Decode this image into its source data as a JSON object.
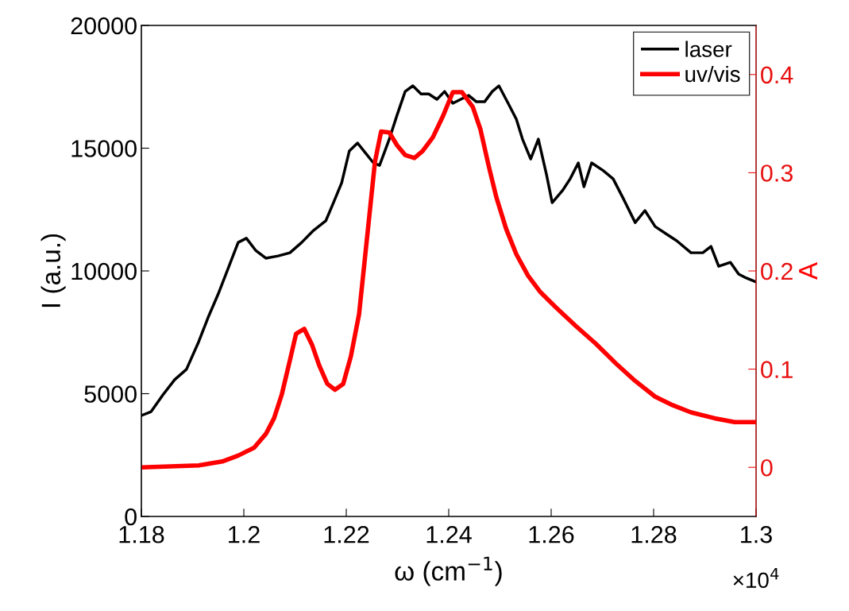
{
  "chart_data": {
    "type": "line",
    "xlabel": "ω (cm$^{−1}$)",
    "ylabel": "I (a.u.)",
    "y2label": "A",
    "annotations": [
      "×10$^{4}$"
    ],
    "xlim": [
      1.18,
      1.3
    ],
    "xticks": [
      1.18,
      1.2,
      1.22,
      1.24,
      1.26,
      1.28,
      1.3
    ],
    "ylim": [
      0,
      20000
    ],
    "yticks": [
      0,
      5000,
      10000,
      15000,
      20000
    ],
    "y2lim": [
      -0.05,
      0.45
    ],
    "y2ticks": [
      0,
      0.1,
      0.2,
      0.3,
      0.4
    ],
    "grid": false,
    "legend": "top right",
    "line_style": "solid",
    "marker": "none",
    "series": [
      {
        "name": "laser",
        "color": "#000000",
        "x": [
          1.18,
          1.1819,
          1.1842,
          1.1865,
          1.1888,
          1.1912,
          1.193,
          1.195,
          1.1974,
          1.1989,
          1.2005,
          1.2023,
          1.2043,
          1.2067,
          1.209,
          1.2113,
          1.2136,
          1.216,
          1.2175,
          1.2191,
          1.2206,
          1.2222,
          1.2237,
          1.2253,
          1.2265,
          1.2284,
          1.2299,
          1.2315,
          1.233,
          1.2346,
          1.2361,
          1.2377,
          1.2392,
          1.2408,
          1.2439,
          1.2454,
          1.247,
          1.2485,
          1.2498,
          1.2516,
          1.2532,
          1.2544,
          1.256,
          1.2575,
          1.2591,
          1.2602,
          1.2622,
          1.2637,
          1.2653,
          1.2664,
          1.2679,
          1.2702,
          1.2721,
          1.2741,
          1.2764,
          1.2783,
          1.2803,
          1.2826,
          1.2845,
          1.2873,
          1.2896,
          1.2912,
          1.2927,
          1.295,
          1.2966,
          1.2981,
          1.3
        ],
        "values": [
          4110,
          4270,
          4950,
          5570,
          5990,
          7120,
          8090,
          9060,
          10350,
          11160,
          11330,
          10840,
          10520,
          10610,
          10740,
          11160,
          11650,
          12040,
          12780,
          13590,
          14890,
          15210,
          14820,
          14400,
          14300,
          15370,
          16340,
          17310,
          17540,
          17210,
          17210,
          16990,
          17310,
          16830,
          17150,
          16890,
          16890,
          17310,
          17540,
          16830,
          16180,
          15370,
          14560,
          15370,
          13910,
          12780,
          13270,
          13750,
          14400,
          13430,
          14400,
          14080,
          13750,
          12940,
          11970,
          12460,
          11810,
          11490,
          11230,
          10740,
          10740,
          11000,
          10190,
          10350,
          9870,
          9710,
          9550
        ]
      },
      {
        "name": "uv/vis",
        "color": "#ff0000",
        "axis": "y2",
        "x": [
          1.18,
          1.1912,
          1.1958,
          1.1989,
          1.202,
          1.2043,
          1.2059,
          1.2074,
          1.209,
          1.2102,
          1.2118,
          1.2133,
          1.2147,
          1.2163,
          1.2178,
          1.2194,
          1.2209,
          1.2225,
          1.224,
          1.2256,
          1.2268,
          1.2284,
          1.2299,
          1.2315,
          1.2333,
          1.2349,
          1.2369,
          1.2389,
          1.2408,
          1.2426,
          1.2447,
          1.2462,
          1.2478,
          1.2493,
          1.2512,
          1.2532,
          1.2555,
          1.2578,
          1.2609,
          1.2648,
          1.2687,
          1.2726,
          1.2764,
          1.2803,
          1.2834,
          1.2873,
          1.2919,
          1.2958,
          1.3
        ],
        "values": [
          0,
          0.002,
          0.006,
          0.012,
          0.02,
          0.034,
          0.05,
          0.074,
          0.109,
          0.136,
          0.141,
          0.125,
          0.104,
          0.085,
          0.079,
          0.085,
          0.113,
          0.156,
          0.231,
          0.311,
          0.342,
          0.341,
          0.328,
          0.318,
          0.315,
          0.322,
          0.336,
          0.358,
          0.382,
          0.382,
          0.367,
          0.344,
          0.307,
          0.275,
          0.243,
          0.217,
          0.195,
          0.179,
          0.163,
          0.144,
          0.126,
          0.106,
          0.088,
          0.072,
          0.064,
          0.056,
          0.05,
          0.046,
          0.046
        ]
      }
    ]
  }
}
